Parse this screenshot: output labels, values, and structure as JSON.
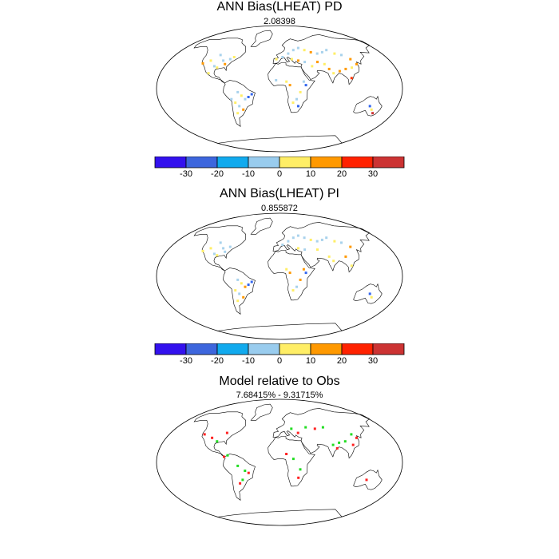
{
  "panels": [
    {
      "title": "ANN Bias(LHEAT) PD",
      "subtitle": "2.08398",
      "points": [
        [
          -100,
          48,
          "#a8d2ec"
        ],
        [
          -90,
          40,
          "#a8d2ec"
        ],
        [
          -110,
          40,
          "#ffee66"
        ],
        [
          -120,
          36,
          "#ff9900"
        ],
        [
          -100,
          32,
          "#a8d2ec"
        ],
        [
          -85,
          35,
          "#ff9900"
        ],
        [
          -80,
          42,
          "#a8d2ec"
        ],
        [
          -75,
          45,
          "#ffee66"
        ],
        [
          -95,
          30,
          "#ffee66"
        ],
        [
          -105,
          22,
          "#ffee66"
        ],
        [
          -60,
          -5,
          "#a8d2ec"
        ],
        [
          -55,
          -10,
          "#ffee66"
        ],
        [
          -50,
          -15,
          "#a8d2ec"
        ],
        [
          -45,
          -12,
          "#3366ee"
        ],
        [
          -40,
          -8,
          "#3366ee"
        ],
        [
          -65,
          -20,
          "#ffee66"
        ],
        [
          -60,
          -25,
          "#a8d2ec"
        ],
        [
          -55,
          -30,
          "#ff9900"
        ],
        [
          -65,
          -35,
          "#ffee66"
        ],
        [
          -70,
          -15,
          "#a8d2ec"
        ],
        [
          -5,
          42,
          "#ffee66"
        ],
        [
          5,
          45,
          "#a8d2ec"
        ],
        [
          15,
          50,
          "#a8d2ec"
        ],
        [
          25,
          55,
          "#a8d2ec"
        ],
        [
          35,
          58,
          "#a8d2ec"
        ],
        [
          45,
          55,
          "#ffee66"
        ],
        [
          55,
          52,
          "#ff9900"
        ],
        [
          65,
          50,
          "#a8d2ec"
        ],
        [
          75,
          52,
          "#a8d2ec"
        ],
        [
          85,
          55,
          "#a8d2ec"
        ],
        [
          95,
          50,
          "#ffee66"
        ],
        [
          105,
          48,
          "#a8d2ec"
        ],
        [
          115,
          42,
          "#ff9900"
        ],
        [
          120,
          35,
          "#ff9900"
        ],
        [
          110,
          30,
          "#ffee66"
        ],
        [
          100,
          28,
          "#ff9900"
        ],
        [
          90,
          25,
          "#ff9900"
        ],
        [
          80,
          22,
          "#ffee66"
        ],
        [
          75,
          28,
          "#ff9900"
        ],
        [
          70,
          35,
          "#ffee66"
        ],
        [
          60,
          38,
          "#ff9900"
        ],
        [
          50,
          32,
          "#ffee66"
        ],
        [
          40,
          38,
          "#a8d2ec"
        ],
        [
          30,
          40,
          "#ff9900"
        ],
        [
          20,
          42,
          "#ffee66"
        ],
        [
          35,
          10,
          "#a8d2ec"
        ],
        [
          38,
          5,
          "#3366ee"
        ],
        [
          30,
          -5,
          "#ffee66"
        ],
        [
          25,
          -15,
          "#a8d2ec"
        ],
        [
          28,
          -25,
          "#3366ee"
        ],
        [
          20,
          -20,
          "#ffee66"
        ],
        [
          15,
          5,
          "#ff9900"
        ],
        [
          10,
          10,
          "#ffee66"
        ],
        [
          -5,
          12,
          "#a8d2ec"
        ],
        [
          105,
          15,
          "#ff3300"
        ],
        [
          135,
          -25,
          "#3366ee"
        ],
        [
          140,
          -30,
          "#ffee66"
        ],
        [
          145,
          -35,
          "#cc3333"
        ]
      ]
    },
    {
      "title": "ANN Bias(LHEAT) PI",
      "subtitle": "0.855872",
      "points": [
        [
          -100,
          48,
          "#a8d2ec"
        ],
        [
          -90,
          40,
          "#a8d2ec"
        ],
        [
          -110,
          40,
          "#ffee66"
        ],
        [
          -120,
          36,
          "#ffee66"
        ],
        [
          -100,
          32,
          "#a8d2ec"
        ],
        [
          -85,
          35,
          "#a8d2ec"
        ],
        [
          -80,
          42,
          "#a8d2ec"
        ],
        [
          -95,
          30,
          "#ffee66"
        ],
        [
          -60,
          -5,
          "#a8d2ec"
        ],
        [
          -55,
          -10,
          "#ffee66"
        ],
        [
          -50,
          -15,
          "#ff9900"
        ],
        [
          -45,
          -12,
          "#3366ee"
        ],
        [
          -40,
          -8,
          "#3366ee"
        ],
        [
          -65,
          -20,
          "#ffee66"
        ],
        [
          -60,
          -25,
          "#a8d2ec"
        ],
        [
          -55,
          -30,
          "#ff9900"
        ],
        [
          -65,
          -35,
          "#ffee66"
        ],
        [
          5,
          45,
          "#a8d2ec"
        ],
        [
          15,
          50,
          "#a8d2ec"
        ],
        [
          25,
          55,
          "#a8d2ec"
        ],
        [
          35,
          58,
          "#a8d2ec"
        ],
        [
          45,
          55,
          "#a8d2ec"
        ],
        [
          55,
          52,
          "#ffee66"
        ],
        [
          65,
          50,
          "#a8d2ec"
        ],
        [
          75,
          52,
          "#a8d2ec"
        ],
        [
          85,
          55,
          "#a8d2ec"
        ],
        [
          95,
          50,
          "#ffee66"
        ],
        [
          105,
          48,
          "#a8d2ec"
        ],
        [
          115,
          42,
          "#ff9900"
        ],
        [
          100,
          28,
          "#ff9900"
        ],
        [
          80,
          22,
          "#ffee66"
        ],
        [
          75,
          28,
          "#ffee66"
        ],
        [
          60,
          38,
          "#ffee66"
        ],
        [
          40,
          38,
          "#a8d2ec"
        ],
        [
          30,
          40,
          "#ffee66"
        ],
        [
          35,
          10,
          "#ff9900"
        ],
        [
          38,
          5,
          "#3366ee"
        ],
        [
          30,
          -5,
          "#ff9900"
        ],
        [
          25,
          -15,
          "#a8d2ec"
        ],
        [
          20,
          -20,
          "#ffee66"
        ],
        [
          15,
          5,
          "#ff9900"
        ],
        [
          10,
          10,
          "#ffee66"
        ],
        [
          105,
          15,
          "#ffee66"
        ],
        [
          135,
          -25,
          "#3366ee"
        ],
        [
          140,
          -30,
          "#ffee66"
        ]
      ]
    },
    {
      "title": "Model relative to Obs",
      "subtitle": "7.68415% - 9.31715%",
      "points": [
        [
          -120,
          40,
          "#ff2222"
        ],
        [
          -105,
          35,
          "#ff2222"
        ],
        [
          -95,
          30,
          "#22dd22"
        ],
        [
          -85,
          42,
          "#ff2222"
        ],
        [
          -60,
          -5,
          "#22dd22"
        ],
        [
          -50,
          -12,
          "#22dd22"
        ],
        [
          -45,
          -15,
          "#ff2222"
        ],
        [
          -55,
          -25,
          "#22dd22"
        ],
        [
          -60,
          -30,
          "#ff2222"
        ],
        [
          -75,
          10,
          "#22dd22"
        ],
        [
          -80,
          8,
          "#ff2222"
        ],
        [
          20,
          48,
          "#22dd22"
        ],
        [
          30,
          42,
          "#ff2222"
        ],
        [
          45,
          50,
          "#22dd22"
        ],
        [
          60,
          48,
          "#ff2222"
        ],
        [
          75,
          50,
          "#22dd22"
        ],
        [
          80,
          25,
          "#22dd22"
        ],
        [
          85,
          20,
          "#ff2222"
        ],
        [
          90,
          28,
          "#22dd22"
        ],
        [
          100,
          30,
          "#22dd22"
        ],
        [
          110,
          25,
          "#ff2222"
        ],
        [
          115,
          40,
          "#22dd22"
        ],
        [
          120,
          35,
          "#ff2222"
        ],
        [
          30,
          -10,
          "#22dd22"
        ],
        [
          28,
          -22,
          "#ff2222"
        ],
        [
          20,
          5,
          "#22dd22"
        ],
        [
          10,
          12,
          "#ff2222"
        ],
        [
          130,
          -25,
          "#ff2222"
        ]
      ]
    }
  ],
  "colorbar": {
    "colors": [
      "#3311ee",
      "#3d66dd",
      "#11aaee",
      "#99ccee",
      "#ffee66",
      "#ff9900",
      "#ff2200",
      "#cc3333"
    ],
    "labels": [
      "-30",
      "-20",
      "-10",
      "0",
      "10",
      "20",
      "30"
    ]
  },
  "map": {
    "outline_color": "#000000",
    "coast_color": "#000000"
  }
}
